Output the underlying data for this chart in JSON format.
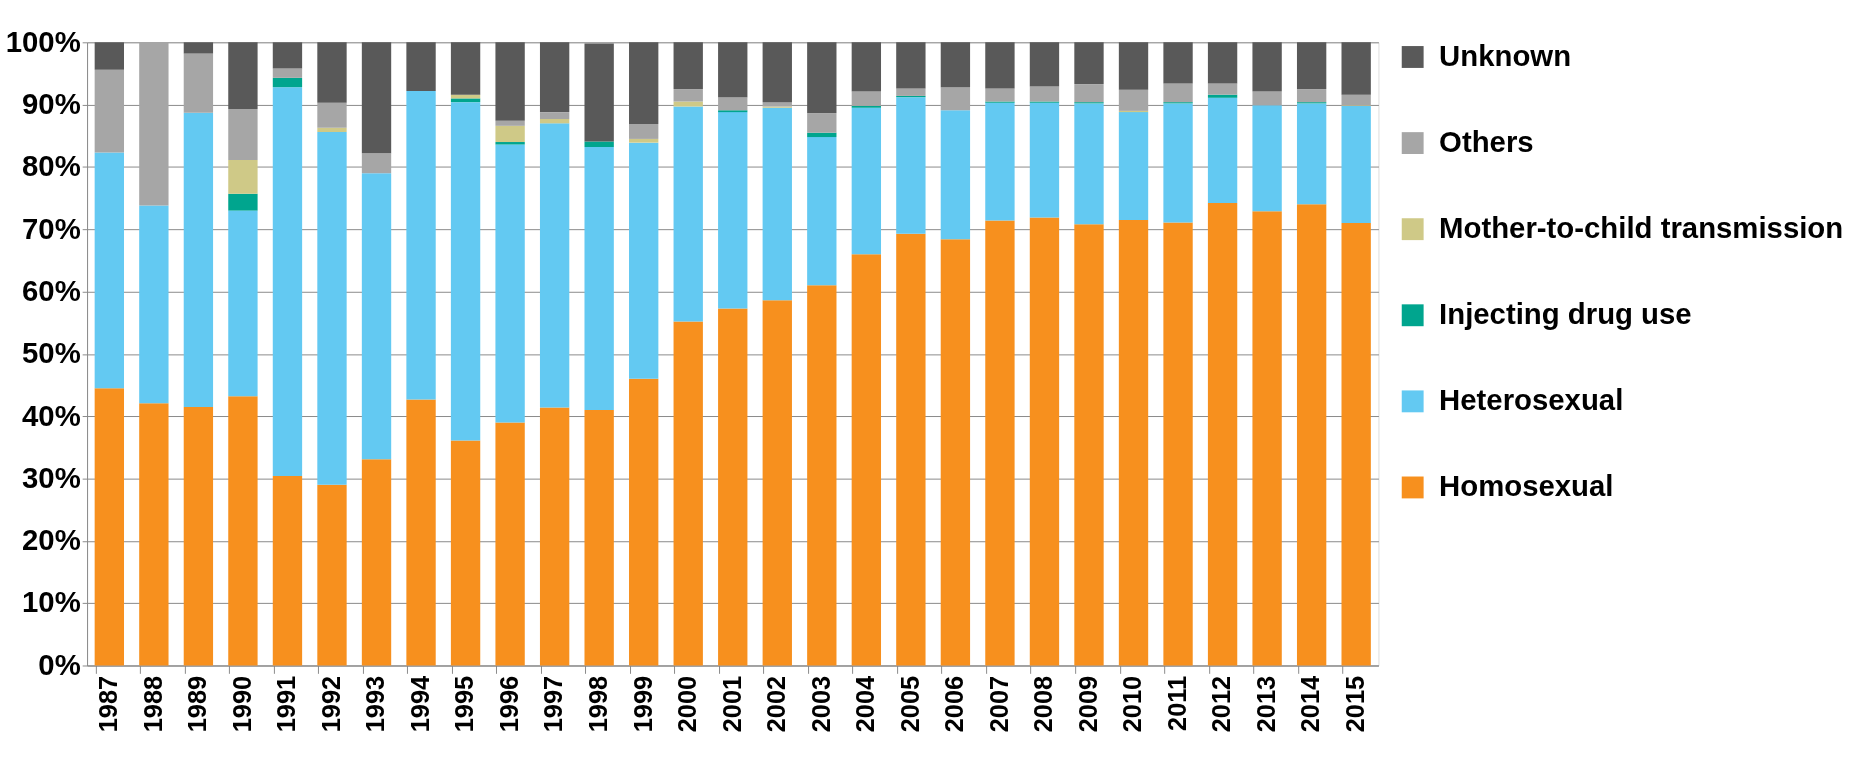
{
  "chart_data": {
    "type": "bar",
    "stacked": true,
    "grid": "y",
    "legend": "right",
    "categories": [
      "1987",
      "1988",
      "1989",
      "1990",
      "1991",
      "1992",
      "1993",
      "1994",
      "1995",
      "1996",
      "1997",
      "1998",
      "1999",
      "2000",
      "2001",
      "2002",
      "2003",
      "2004",
      "2005",
      "2006",
      "2007",
      "2008",
      "2009",
      "2010",
      "2011",
      "2012",
      "2013",
      "2014",
      "2015"
    ],
    "ylim": [
      0,
      100
    ],
    "yticks": [
      {
        "value": 0,
        "label": "0%"
      },
      {
        "value": 10,
        "label": "10%"
      },
      {
        "value": 20,
        "label": "20%"
      },
      {
        "value": 30,
        "label": "30%"
      },
      {
        "value": 40,
        "label": "40%"
      },
      {
        "value": 50,
        "label": "50%"
      },
      {
        "value": 60,
        "label": "60%"
      },
      {
        "value": 70,
        "label": "70%"
      },
      {
        "value": 80,
        "label": "80%"
      },
      {
        "value": 90,
        "label": "90%"
      },
      {
        "value": 100,
        "label": "100%"
      }
    ],
    "series": [
      {
        "name": "Homosexual",
        "color": "#f7901e",
        "values": [
          44.5,
          42.1,
          41.5,
          43.2,
          30.4,
          29.0,
          33.1,
          42.7,
          36.1,
          39.0,
          41.4,
          41.0,
          46.0,
          55.2,
          57.3,
          58.6,
          61.0,
          66.0,
          69.3,
          68.4,
          71.4,
          71.9,
          70.8,
          71.5,
          71.1,
          74.2,
          72.9,
          74.0,
          71.0
        ]
      },
      {
        "name": "Heterosexual",
        "color": "#63c9f2",
        "values": [
          37.8,
          31.7,
          47.2,
          29.8,
          62.4,
          56.6,
          45.9,
          49.5,
          54.3,
          44.6,
          45.6,
          42.2,
          37.9,
          34.5,
          31.5,
          30.9,
          23.8,
          23.5,
          21.9,
          20.7,
          18.9,
          18.4,
          19.4,
          17.3,
          19.1,
          16.9,
          17.0,
          16.2,
          18.8
        ]
      },
      {
        "name": "Injecting drug use",
        "color": "#00a58e",
        "values": [
          0,
          0,
          0,
          2.7,
          1.5,
          0,
          0,
          0,
          0.6,
          0.4,
          0,
          0.9,
          0,
          0,
          0.3,
          0,
          0.7,
          0.3,
          0.2,
          0,
          0.2,
          0.2,
          0.2,
          0,
          0.2,
          0.5,
          0,
          0.2,
          0
        ]
      },
      {
        "name": "Mother-to-child transmission",
        "color": "#cfc987",
        "values": [
          0,
          0,
          0,
          5.4,
          0,
          0.7,
          0,
          0,
          0.6,
          2.6,
          0.7,
          0,
          0.6,
          0.8,
          0,
          0.2,
          0,
          0,
          0,
          0,
          0,
          0,
          0,
          0.2,
          0,
          0,
          0,
          0,
          0.1
        ]
      },
      {
        "name": "Others",
        "color": "#a6a6a6",
        "values": [
          13.3,
          26.2,
          9.5,
          8.2,
          1.5,
          4.0,
          3.2,
          0,
          0,
          0.8,
          1.1,
          null,
          2.4,
          2.0,
          2.1,
          0.7,
          3.1,
          2.3,
          1.2,
          3.7,
          2.1,
          2.4,
          2.9,
          3.4,
          3.0,
          1.8,
          2.2,
          2.1,
          1.7
        ]
      },
      {
        "name": "Unknown",
        "color": "#595959",
        "values": [
          4.4,
          0,
          1.8,
          10.7,
          4.2,
          9.7,
          17.8,
          7.8,
          8.4,
          12.6,
          11.2,
          15.7,
          13.1,
          7.5,
          8.8,
          9.6,
          11.4,
          7.9,
          7.4,
          7.2,
          7.4,
          7.1,
          6.7,
          7.6,
          6.6,
          6.6,
          7.9,
          7.5,
          8.4
        ]
      }
    ]
  }
}
